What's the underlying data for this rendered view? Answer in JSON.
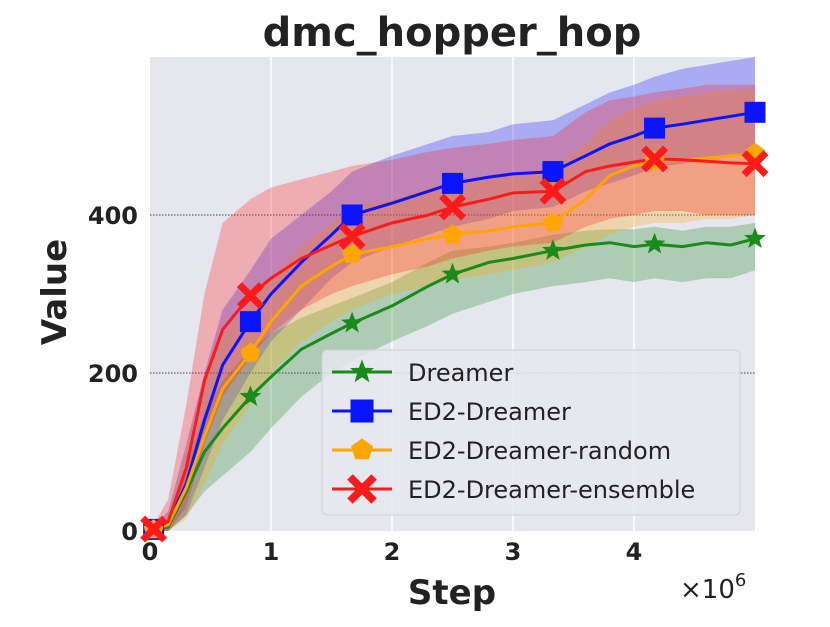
{
  "chart_data": {
    "type": "line",
    "title": "dmc_hopper_hop",
    "xlabel": "Step",
    "ylabel": "Value",
    "x_scale_label": "×10",
    "x_scale_exp": "6",
    "xlim": [
      0,
      5.0
    ],
    "ylim": [
      0,
      600
    ],
    "x_ticks": [
      "0",
      "1",
      "2",
      "3",
      "4"
    ],
    "y_ticks": [
      "0",
      "200",
      "400"
    ],
    "grid": true,
    "legend_position": "lower-right",
    "series": [
      {
        "name": "Dreamer",
        "color": "#1a8a1a",
        "marker": "star",
        "x": [
          0,
          0.15,
          0.3,
          0.45,
          0.6,
          0.83,
          1.0,
          1.25,
          1.5,
          1.67,
          2.0,
          2.3,
          2.5,
          2.8,
          3.0,
          3.33,
          3.6,
          3.8,
          4.0,
          4.17,
          4.4,
          4.6,
          4.8,
          5.0
        ],
        "y": [
          0,
          5,
          50,
          100,
          130,
          170,
          195,
          230,
          250,
          263,
          285,
          310,
          325,
          340,
          345,
          355,
          362,
          365,
          360,
          363,
          360,
          365,
          362,
          370
        ],
        "lower": [
          0,
          0,
          20,
          50,
          70,
          100,
          130,
          170,
          200,
          215,
          240,
          260,
          275,
          290,
          300,
          310,
          315,
          320,
          315,
          320,
          315,
          320,
          320,
          330
        ],
        "upper": [
          0,
          10,
          80,
          150,
          190,
          230,
          250,
          270,
          285,
          295,
          315,
          340,
          355,
          360,
          365,
          375,
          380,
          382,
          382,
          385,
          380,
          385,
          385,
          390
        ]
      },
      {
        "name": "ED2-Dreamer",
        "color": "#0a14ff",
        "marker": "square",
        "x": [
          0,
          0.15,
          0.3,
          0.45,
          0.6,
          0.83,
          1.0,
          1.25,
          1.5,
          1.67,
          2.0,
          2.3,
          2.5,
          2.8,
          3.0,
          3.33,
          3.6,
          3.8,
          4.0,
          4.17,
          4.4,
          4.6,
          4.8,
          5.0
        ],
        "y": [
          0,
          10,
          60,
          140,
          210,
          265,
          300,
          340,
          375,
          400,
          415,
          430,
          440,
          448,
          452,
          455,
          475,
          490,
          500,
          510,
          515,
          520,
          525,
          530
        ],
        "lower": [
          0,
          0,
          20,
          80,
          140,
          200,
          240,
          280,
          320,
          340,
          360,
          375,
          385,
          395,
          405,
          410,
          430,
          440,
          450,
          460,
          465,
          470,
          475,
          480
        ],
        "upper": [
          0,
          25,
          110,
          200,
          280,
          330,
          370,
          400,
          430,
          455,
          475,
          490,
          500,
          505,
          515,
          520,
          540,
          555,
          565,
          575,
          585,
          590,
          595,
          600
        ]
      },
      {
        "name": "ED2-Dreamer-random",
        "color": "#ffa500",
        "marker": "pentagon",
        "x": [
          0,
          0.15,
          0.3,
          0.45,
          0.6,
          0.83,
          1.0,
          1.25,
          1.5,
          1.67,
          2.0,
          2.3,
          2.5,
          2.8,
          3.0,
          3.33,
          3.6,
          3.8,
          4.0,
          4.17,
          4.4,
          4.6,
          4.8,
          5.0
        ],
        "y": [
          0,
          8,
          55,
          120,
          180,
          225,
          265,
          310,
          335,
          350,
          360,
          370,
          375,
          380,
          385,
          390,
          420,
          450,
          462,
          468,
          470,
          472,
          475,
          478
        ],
        "lower": [
          0,
          0,
          15,
          60,
          110,
          160,
          200,
          240,
          265,
          280,
          300,
          310,
          318,
          325,
          330,
          340,
          360,
          375,
          385,
          390,
          390,
          395,
          395,
          400
        ],
        "upper": [
          0,
          20,
          100,
          190,
          250,
          290,
          320,
          360,
          390,
          410,
          420,
          435,
          440,
          448,
          452,
          460,
          490,
          520,
          535,
          545,
          550,
          555,
          558,
          560
        ]
      },
      {
        "name": "ED2-Dreamer-ensemble",
        "color": "#ff1a1a",
        "marker": "x",
        "x": [
          0,
          0.15,
          0.3,
          0.45,
          0.6,
          0.83,
          1.0,
          1.25,
          1.5,
          1.67,
          2.0,
          2.3,
          2.5,
          2.8,
          3.0,
          3.33,
          3.6,
          3.8,
          4.0,
          4.17,
          4.4,
          4.6,
          4.8,
          5.0
        ],
        "y": [
          0,
          12,
          80,
          190,
          255,
          298,
          320,
          345,
          362,
          373,
          390,
          400,
          410,
          420,
          428,
          430,
          455,
          462,
          467,
          471,
          470,
          468,
          466,
          465
        ],
        "lower": [
          0,
          0,
          30,
          110,
          170,
          220,
          250,
          280,
          300,
          310,
          325,
          335,
          345,
          355,
          360,
          365,
          385,
          395,
          400,
          405,
          405,
          400,
          400,
          400
        ],
        "upper": [
          0,
          40,
          160,
          300,
          390,
          420,
          435,
          445,
          455,
          462,
          470,
          480,
          485,
          490,
          495,
          500,
          530,
          545,
          550,
          555,
          560,
          565,
          565,
          565
        ]
      }
    ],
    "marker_x": [
      0.03,
      0.83,
      1.67,
      2.5,
      3.33,
      4.17,
      5.0
    ]
  }
}
